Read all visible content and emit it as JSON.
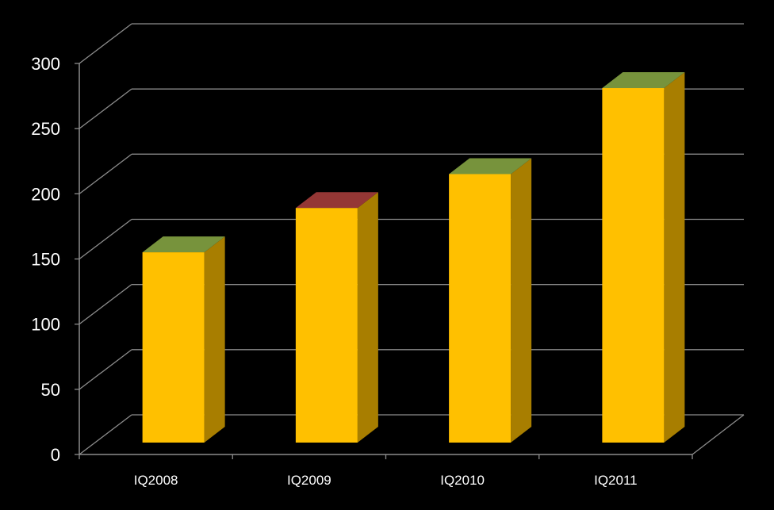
{
  "chart_data": {
    "type": "bar",
    "title": "",
    "xlabel": "",
    "ylabel": "",
    "categories": [
      "IQ2008",
      "IQ2009",
      "IQ2010",
      "IQ2011"
    ],
    "series": [
      {
        "values": [
          146,
          180,
          206,
          272
        ]
      }
    ],
    "top_cap_colors": [
      "#77933c",
      "#953735",
      "#77933c",
      "#77933c"
    ],
    "ylim": [
      0,
      300
    ],
    "yticks": [
      "0",
      "50",
      "100",
      "150",
      "200",
      "250",
      "300"
    ],
    "grid": true,
    "legend": "none",
    "style": "3d-column"
  },
  "colors": {
    "background": "#000000",
    "bar_front": "#ffc000",
    "bar_side": "#a87e00",
    "grid": "#8c8c8c",
    "text": "#ffffff"
  }
}
